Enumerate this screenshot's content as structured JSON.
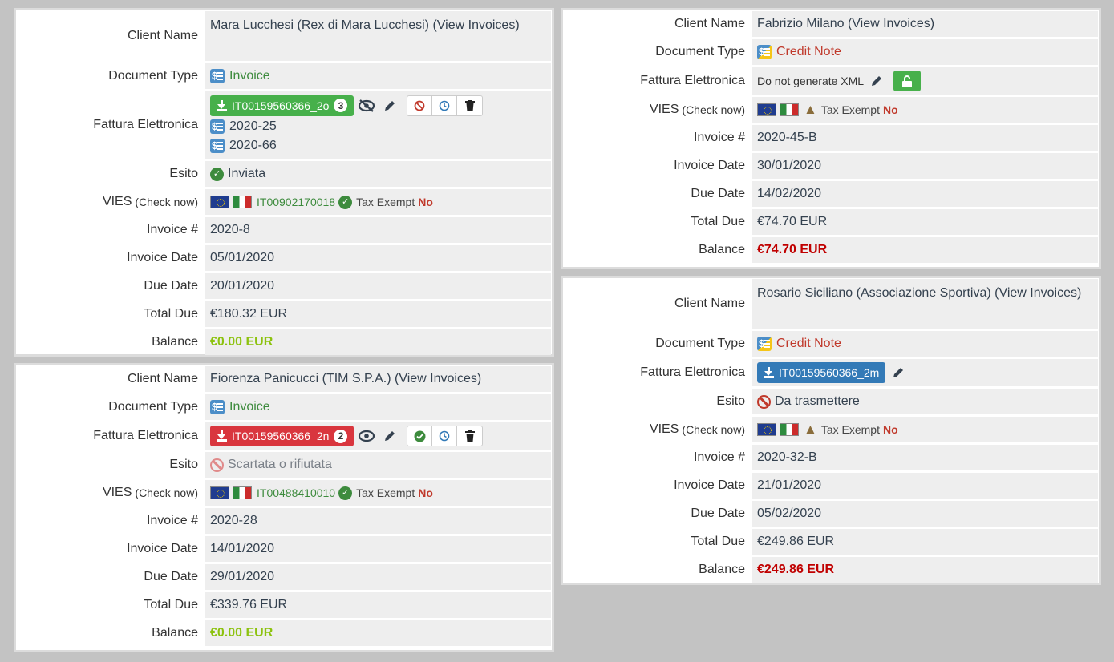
{
  "labels": {
    "client_name": "Client Name",
    "document_type": "Document Type",
    "fattura": "Fattura Elettronica",
    "esito": "Esito",
    "vies": "VIES",
    "check_now": "(Check now)",
    "invoice_num": "Invoice #",
    "invoice_date": "Invoice Date",
    "due_date": "Due Date",
    "total_due": "Total Due",
    "balance": "Balance",
    "tax_exempt": "Tax Exempt",
    "no": "No"
  },
  "cards": {
    "c1": {
      "client": "Mara Lucchesi (Rex di Mara Lucchesi)",
      "view_invoices": "(View Invoices)",
      "doc_type": "Invoice",
      "fattura_file": "IT00159560366_2o",
      "fattura_count": "3",
      "related": [
        "2020-25",
        "2020-66"
      ],
      "esito": "Inviata",
      "vat": "IT00902170018",
      "invoice_num": "2020-8",
      "invoice_date": "05/01/2020",
      "due_date": "20/01/2020",
      "total_due": "€180.32 EUR",
      "balance": "€0.00 EUR"
    },
    "c2": {
      "client": "Fiorenza Panicucci (TIM S.P.A.)",
      "view_invoices": "(View Invoices)",
      "doc_type": "Invoice",
      "fattura_file": "IT00159560366_2n",
      "fattura_count": "2",
      "esito": "Scartata o rifiutata",
      "vat": "IT00488410010",
      "invoice_num": "2020-28",
      "invoice_date": "14/01/2020",
      "due_date": "29/01/2020",
      "total_due": "€339.76 EUR",
      "balance": "€0.00 EUR"
    },
    "c3": {
      "client": "Fabrizio Milano",
      "view_invoices": "(View Invoices)",
      "doc_type": "Credit Note",
      "fattura_text": "Do not generate XML",
      "invoice_num": "2020-45-B",
      "invoice_date": "30/01/2020",
      "due_date": "14/02/2020",
      "total_due": "€74.70 EUR",
      "balance": "€74.70 EUR"
    },
    "c4": {
      "client": "Rosario Siciliano (Associazione Sportiva)",
      "view_invoices": "(View Invoices)",
      "doc_type": "Credit Note",
      "fattura_file": "IT00159560366_2m",
      "esito": "Da trasmettere",
      "invoice_num": "2020-32-B",
      "invoice_date": "21/01/2020",
      "due_date": "05/02/2020",
      "total_due": "€249.86 EUR",
      "balance": "€249.86 EUR"
    }
  },
  "colors": {
    "background": "#c3c3c3",
    "green_button": "#47b04b",
    "red_button": "#d9363e",
    "blue_button": "#337ab7",
    "balance_zero": "#8cc20e",
    "balance_due": "#c00000"
  }
}
